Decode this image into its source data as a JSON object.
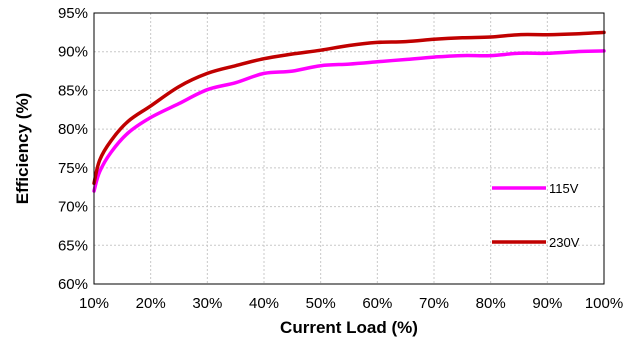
{
  "chart_data": {
    "type": "line",
    "xlabel": "Current Load (%)",
    "ylabel": "Efficiency (%)",
    "xlim": [
      10,
      100
    ],
    "ylim": [
      60,
      95
    ],
    "x_ticks": [
      10,
      20,
      30,
      40,
      50,
      60,
      70,
      80,
      90,
      100
    ],
    "y_ticks": [
      60,
      65,
      70,
      75,
      80,
      85,
      90,
      95
    ],
    "x_tick_labels": [
      "10%",
      "20%",
      "30%",
      "40%",
      "50%",
      "60%",
      "70%",
      "80%",
      "90%",
      "100%"
    ],
    "y_tick_labels": [
      "60%",
      "65%",
      "70%",
      "75%",
      "80%",
      "85%",
      "90%",
      "95%"
    ],
    "grid": true,
    "legend_position": "right",
    "x": [
      10,
      11,
      13,
      16,
      20,
      25,
      30,
      35,
      40,
      45,
      50,
      55,
      60,
      65,
      70,
      75,
      80,
      85,
      90,
      95,
      100
    ],
    "series": [
      {
        "name": "115V",
        "color": "#ff00ff",
        "values": [
          72.0,
          74.5,
          77.0,
          79.5,
          81.5,
          83.3,
          85.1,
          86.0,
          87.2,
          87.5,
          88.2,
          88.4,
          88.7,
          89.0,
          89.3,
          89.5,
          89.5,
          89.8,
          89.8,
          90.0,
          90.1
        ]
      },
      {
        "name": "230V",
        "color": "#c00000",
        "values": [
          73.0,
          76.0,
          78.5,
          81.0,
          83.0,
          85.5,
          87.2,
          88.2,
          89.1,
          89.7,
          90.2,
          90.8,
          91.2,
          91.3,
          91.6,
          91.8,
          91.9,
          92.2,
          92.2,
          92.3,
          92.5
        ]
      }
    ]
  }
}
